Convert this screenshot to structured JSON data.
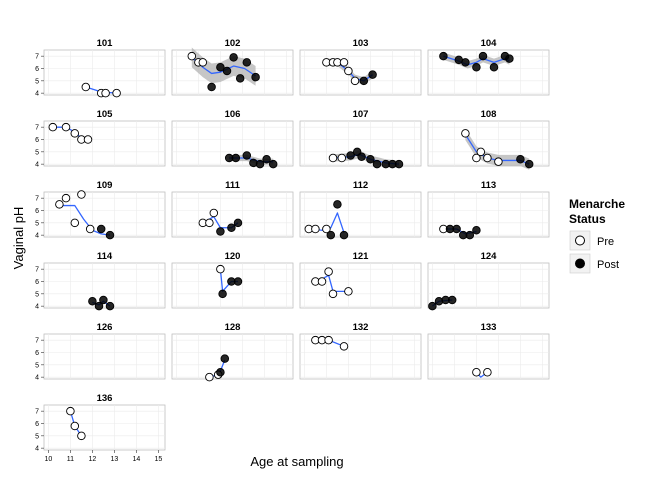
{
  "chart_data": {
    "type": "scatter",
    "facet_layout": "small multiples, 4 columns",
    "xlabel": "Age at sampling",
    "ylabel": "Vaginal pH",
    "xlim": [
      9.8,
      15.3
    ],
    "ylim": [
      3.85,
      7.5
    ],
    "x_ticks": [
      10,
      11,
      12,
      13,
      14,
      15
    ],
    "y_ticks": [
      4,
      5,
      6,
      7
    ],
    "grid": true,
    "smooth_line_color": "#3366ff",
    "ribbon_color": "#b3b3b3",
    "legend": {
      "title": "Menarche Status",
      "placement": "right",
      "entries": [
        {
          "label": "Pre",
          "marker": "open-circle"
        },
        {
          "label": "Post",
          "marker": "filled-circle"
        }
      ]
    },
    "panels": [
      {
        "title": "101",
        "points": [
          {
            "x": 11.7,
            "y": 4.5,
            "s": "Pre"
          },
          {
            "x": 12.4,
            "y": 4.0,
            "s": "Pre"
          },
          {
            "x": 12.6,
            "y": 4.0,
            "s": "Pre"
          },
          {
            "x": 13.1,
            "y": 4.0,
            "s": "Pre"
          }
        ],
        "smooth": [
          [
            11.7,
            4.5
          ],
          [
            12.4,
            4.1
          ],
          [
            13.1,
            4.0
          ]
        ]
      },
      {
        "title": "102",
        "points": [
          {
            "x": 10.7,
            "y": 7.0,
            "s": "Pre"
          },
          {
            "x": 11.0,
            "y": 6.5,
            "s": "Pre"
          },
          {
            "x": 11.2,
            "y": 6.5,
            "s": "Pre"
          },
          {
            "x": 11.6,
            "y": 4.5,
            "s": "Post"
          },
          {
            "x": 12.0,
            "y": 6.1,
            "s": "Post"
          },
          {
            "x": 12.3,
            "y": 5.8,
            "s": "Post"
          },
          {
            "x": 12.6,
            "y": 6.9,
            "s": "Post"
          },
          {
            "x": 12.9,
            "y": 5.2,
            "s": "Post"
          },
          {
            "x": 13.2,
            "y": 6.5,
            "s": "Post"
          },
          {
            "x": 13.6,
            "y": 5.3,
            "s": "Post"
          }
        ],
        "smooth": [
          [
            10.7,
            6.9
          ],
          [
            11.2,
            6.1
          ],
          [
            11.6,
            5.6
          ],
          [
            12.0,
            5.7
          ],
          [
            12.6,
            6.2
          ],
          [
            13.1,
            6.0
          ],
          [
            13.6,
            5.4
          ]
        ],
        "ribbon_half_width": 0.8
      },
      {
        "title": "103",
        "points": [
          {
            "x": 11.0,
            "y": 6.5,
            "s": "Pre"
          },
          {
            "x": 11.3,
            "y": 6.5,
            "s": "Pre"
          },
          {
            "x": 11.5,
            "y": 6.5,
            "s": "Pre"
          },
          {
            "x": 11.8,
            "y": 6.5,
            "s": "Pre"
          },
          {
            "x": 12.0,
            "y": 5.8,
            "s": "Pre"
          },
          {
            "x": 12.3,
            "y": 5.0,
            "s": "Pre"
          },
          {
            "x": 12.7,
            "y": 5.0,
            "s": "Post"
          },
          {
            "x": 13.1,
            "y": 5.5,
            "s": "Post"
          }
        ],
        "smooth": [
          [
            11.0,
            6.5
          ],
          [
            11.5,
            6.5
          ],
          [
            12.0,
            5.8
          ],
          [
            12.3,
            5.2
          ],
          [
            12.7,
            5.0
          ],
          [
            13.1,
            5.5
          ]
        ],
        "ribbon_half_width": 0.3
      },
      {
        "title": "104",
        "points": [
          {
            "x": 10.5,
            "y": 7.0,
            "s": "Post"
          },
          {
            "x": 11.2,
            "y": 6.7,
            "s": "Post"
          },
          {
            "x": 11.5,
            "y": 6.5,
            "s": "Post"
          },
          {
            "x": 12.0,
            "y": 6.1,
            "s": "Post"
          },
          {
            "x": 12.3,
            "y": 7.0,
            "s": "Post"
          },
          {
            "x": 12.8,
            "y": 6.1,
            "s": "Post"
          },
          {
            "x": 13.3,
            "y": 7.0,
            "s": "Post"
          },
          {
            "x": 13.5,
            "y": 6.8,
            "s": "Post"
          }
        ],
        "smooth": [
          [
            10.5,
            7.0
          ],
          [
            11.2,
            6.6
          ],
          [
            11.6,
            6.3
          ],
          [
            12.0,
            6.5
          ],
          [
            12.3,
            6.8
          ],
          [
            12.8,
            6.5
          ],
          [
            13.3,
            6.8
          ],
          [
            13.5,
            6.6
          ]
        ],
        "ribbon_half_width": 0.3
      },
      {
        "title": "105",
        "points": [
          {
            "x": 10.2,
            "y": 7.0,
            "s": "Pre"
          },
          {
            "x": 10.8,
            "y": 7.0,
            "s": "Pre"
          },
          {
            "x": 11.2,
            "y": 6.5,
            "s": "Pre"
          },
          {
            "x": 11.5,
            "y": 6.0,
            "s": "Pre"
          },
          {
            "x": 11.8,
            "y": 6.0,
            "s": "Pre"
          }
        ],
        "smooth": [
          [
            10.2,
            7.0
          ],
          [
            10.8,
            7.0
          ],
          [
            11.2,
            6.6
          ],
          [
            11.5,
            6.1
          ],
          [
            11.8,
            6.0
          ]
        ]
      },
      {
        "title": "106",
        "points": [
          {
            "x": 12.4,
            "y": 4.5,
            "s": "Post"
          },
          {
            "x": 12.7,
            "y": 4.5,
            "s": "Post"
          },
          {
            "x": 13.2,
            "y": 4.7,
            "s": "Post"
          },
          {
            "x": 13.5,
            "y": 4.1,
            "s": "Post"
          },
          {
            "x": 13.8,
            "y": 4.0,
            "s": "Post"
          },
          {
            "x": 14.1,
            "y": 4.4,
            "s": "Post"
          },
          {
            "x": 14.4,
            "y": 4.0,
            "s": "Post"
          }
        ],
        "smooth": [
          [
            12.4,
            4.5
          ],
          [
            13.2,
            4.5
          ],
          [
            13.8,
            4.2
          ],
          [
            14.4,
            4.2
          ]
        ],
        "ribbon_half_width": 0.25
      },
      {
        "title": "107",
        "points": [
          {
            "x": 11.3,
            "y": 4.5,
            "s": "Pre"
          },
          {
            "x": 11.7,
            "y": 4.5,
            "s": "Pre"
          },
          {
            "x": 12.1,
            "y": 4.7,
            "s": "Post"
          },
          {
            "x": 12.4,
            "y": 5.0,
            "s": "Post"
          },
          {
            "x": 12.6,
            "y": 4.6,
            "s": "Post"
          },
          {
            "x": 13.0,
            "y": 4.4,
            "s": "Post"
          },
          {
            "x": 13.3,
            "y": 4.0,
            "s": "Post"
          },
          {
            "x": 13.7,
            "y": 4.0,
            "s": "Post"
          },
          {
            "x": 14.0,
            "y": 4.0,
            "s": "Post"
          },
          {
            "x": 14.3,
            "y": 4.0,
            "s": "Post"
          }
        ],
        "smooth": [
          [
            11.3,
            4.5
          ],
          [
            12.1,
            4.6
          ],
          [
            12.5,
            4.8
          ],
          [
            13.0,
            4.4
          ],
          [
            13.7,
            4.1
          ],
          [
            14.3,
            4.0
          ]
        ],
        "ribbon_half_width": 0.3
      },
      {
        "title": "108",
        "points": [
          {
            "x": 11.5,
            "y": 6.5,
            "s": "Pre"
          },
          {
            "x": 12.0,
            "y": 4.5,
            "s": "Pre"
          },
          {
            "x": 12.2,
            "y": 5.0,
            "s": "Pre"
          },
          {
            "x": 12.5,
            "y": 4.5,
            "s": "Pre"
          },
          {
            "x": 13.0,
            "y": 4.2,
            "s": "Pre"
          },
          {
            "x": 14.0,
            "y": 4.4,
            "s": "Post"
          },
          {
            "x": 14.4,
            "y": 4.0,
            "s": "Post"
          }
        ],
        "smooth": [
          [
            11.5,
            6.4
          ],
          [
            12.0,
            5.0
          ],
          [
            12.5,
            4.5
          ],
          [
            13.0,
            4.3
          ],
          [
            14.0,
            4.3
          ],
          [
            14.4,
            4.0
          ]
        ],
        "ribbon_half_width": 0.45
      },
      {
        "title": "109",
        "points": [
          {
            "x": 10.5,
            "y": 6.5,
            "s": "Pre"
          },
          {
            "x": 10.8,
            "y": 7.0,
            "s": "Pre"
          },
          {
            "x": 11.2,
            "y": 5.0,
            "s": "Pre"
          },
          {
            "x": 11.5,
            "y": 7.3,
            "s": "Pre"
          },
          {
            "x": 11.9,
            "y": 4.5,
            "s": "Pre"
          },
          {
            "x": 12.4,
            "y": 4.5,
            "s": "Post"
          },
          {
            "x": 12.8,
            "y": 4.0,
            "s": "Post"
          }
        ],
        "smooth": [
          [
            10.5,
            6.4
          ],
          [
            11.2,
            6.4
          ],
          [
            11.6,
            5.3
          ],
          [
            12.0,
            4.4
          ],
          [
            12.4,
            4.1
          ],
          [
            12.8,
            4.0
          ]
        ]
      },
      {
        "title": "111",
        "points": [
          {
            "x": 11.2,
            "y": 5.0,
            "s": "Pre"
          },
          {
            "x": 11.5,
            "y": 5.0,
            "s": "Pre"
          },
          {
            "x": 11.7,
            "y": 5.8,
            "s": "Pre"
          },
          {
            "x": 12.0,
            "y": 4.3,
            "s": "Post"
          },
          {
            "x": 12.5,
            "y": 4.6,
            "s": "Post"
          },
          {
            "x": 12.8,
            "y": 5.0,
            "s": "Post"
          }
        ],
        "smooth": [
          [
            11.2,
            5.0
          ],
          [
            11.7,
            5.5
          ],
          [
            12.0,
            4.6
          ],
          [
            12.5,
            4.6
          ],
          [
            12.8,
            5.0
          ]
        ]
      },
      {
        "title": "112",
        "points": [
          {
            "x": 10.2,
            "y": 4.5,
            "s": "Pre"
          },
          {
            "x": 10.5,
            "y": 4.5,
            "s": "Pre"
          },
          {
            "x": 11.0,
            "y": 4.5,
            "s": "Pre"
          },
          {
            "x": 11.2,
            "y": 4.0,
            "s": "Post"
          },
          {
            "x": 11.5,
            "y": 6.5,
            "s": "Post"
          },
          {
            "x": 11.8,
            "y": 4.0,
            "s": "Post"
          }
        ],
        "smooth": [
          [
            10.2,
            4.5
          ],
          [
            10.8,
            4.4
          ],
          [
            11.2,
            4.6
          ],
          [
            11.5,
            5.8
          ],
          [
            11.8,
            4.2
          ]
        ]
      },
      {
        "title": "113",
        "points": [
          {
            "x": 10.5,
            "y": 4.5,
            "s": "Pre"
          },
          {
            "x": 10.8,
            "y": 4.5,
            "s": "Post"
          },
          {
            "x": 11.1,
            "y": 4.5,
            "s": "Post"
          },
          {
            "x": 11.4,
            "y": 4.0,
            "s": "Post"
          },
          {
            "x": 11.7,
            "y": 4.0,
            "s": "Post"
          },
          {
            "x": 12.0,
            "y": 4.4,
            "s": "Post"
          }
        ],
        "smooth": [
          [
            10.5,
            4.5
          ],
          [
            11.1,
            4.5
          ],
          [
            11.5,
            4.1
          ],
          [
            12.0,
            4.3
          ]
        ]
      },
      {
        "title": "114",
        "points": [
          {
            "x": 12.0,
            "y": 4.4,
            "s": "Post"
          },
          {
            "x": 12.3,
            "y": 4.0,
            "s": "Post"
          },
          {
            "x": 12.5,
            "y": 4.5,
            "s": "Post"
          },
          {
            "x": 12.8,
            "y": 4.0,
            "s": "Post"
          }
        ],
        "smooth": [
          [
            12.0,
            4.3
          ],
          [
            12.3,
            4.1
          ],
          [
            12.5,
            4.4
          ],
          [
            12.8,
            4.0
          ]
        ]
      },
      {
        "title": "120",
        "points": [
          {
            "x": 12.0,
            "y": 7.0,
            "s": "Pre"
          },
          {
            "x": 12.1,
            "y": 5.0,
            "s": "Post"
          },
          {
            "x": 12.5,
            "y": 6.0,
            "s": "Post"
          },
          {
            "x": 12.8,
            "y": 6.0,
            "s": "Post"
          }
        ],
        "smooth": [
          [
            12.0,
            7.0
          ],
          [
            12.1,
            5.2
          ],
          [
            12.5,
            6.0
          ],
          [
            12.8,
            6.0
          ]
        ]
      },
      {
        "title": "121",
        "points": [
          {
            "x": 10.5,
            "y": 6.0,
            "s": "Pre"
          },
          {
            "x": 10.8,
            "y": 6.0,
            "s": "Pre"
          },
          {
            "x": 11.1,
            "y": 6.8,
            "s": "Pre"
          },
          {
            "x": 11.3,
            "y": 5.0,
            "s": "Pre"
          },
          {
            "x": 12.0,
            "y": 5.2,
            "s": "Pre"
          }
        ],
        "smooth": [
          [
            10.5,
            6.0
          ],
          [
            10.8,
            6.2
          ],
          [
            11.1,
            6.5
          ],
          [
            11.3,
            5.2
          ],
          [
            12.0,
            5.2
          ]
        ]
      },
      {
        "title": "124",
        "points": [
          {
            "x": 10.0,
            "y": 4.0,
            "s": "Post"
          },
          {
            "x": 10.3,
            "y": 4.4,
            "s": "Post"
          },
          {
            "x": 10.6,
            "y": 4.5,
            "s": "Post"
          },
          {
            "x": 10.9,
            "y": 4.5,
            "s": "Post"
          }
        ],
        "smooth": [
          [
            10.0,
            4.0
          ],
          [
            10.3,
            4.4
          ],
          [
            10.9,
            4.5
          ]
        ]
      },
      {
        "title": "126",
        "points": [],
        "smooth": []
      },
      {
        "title": "128",
        "points": [
          {
            "x": 11.5,
            "y": 4.0,
            "s": "Pre"
          },
          {
            "x": 11.9,
            "y": 4.2,
            "s": "Pre"
          },
          {
            "x": 12.0,
            "y": 4.4,
            "s": "Post"
          },
          {
            "x": 12.2,
            "y": 5.5,
            "s": "Post"
          }
        ],
        "smooth": [
          [
            11.5,
            4.0
          ],
          [
            11.9,
            4.2
          ],
          [
            12.0,
            4.5
          ],
          [
            12.2,
            5.4
          ]
        ]
      },
      {
        "title": "132",
        "points": [
          {
            "x": 10.5,
            "y": 7.0,
            "s": "Pre"
          },
          {
            "x": 10.8,
            "y": 7.0,
            "s": "Pre"
          },
          {
            "x": 11.1,
            "y": 7.0,
            "s": "Pre"
          },
          {
            "x": 11.8,
            "y": 6.5,
            "s": "Pre"
          }
        ],
        "smooth": [
          [
            10.5,
            7.0
          ],
          [
            11.1,
            7.0
          ],
          [
            11.8,
            6.5
          ]
        ]
      },
      {
        "title": "133",
        "points": [
          {
            "x": 12.0,
            "y": 4.4,
            "s": "Pre"
          },
          {
            "x": 12.5,
            "y": 4.4,
            "s": "Pre"
          }
        ],
        "smooth": [
          [
            12.0,
            4.4
          ],
          [
            12.2,
            4.0
          ],
          [
            12.5,
            4.4
          ]
        ]
      },
      {
        "title": "136",
        "points": [
          {
            "x": 11.0,
            "y": 7.0,
            "s": "Pre"
          },
          {
            "x": 11.2,
            "y": 5.8,
            "s": "Pre"
          },
          {
            "x": 11.5,
            "y": 5.0,
            "s": "Pre"
          }
        ],
        "smooth": [
          [
            11.0,
            7.0
          ],
          [
            11.2,
            5.8
          ],
          [
            11.5,
            5.0
          ]
        ]
      }
    ]
  }
}
